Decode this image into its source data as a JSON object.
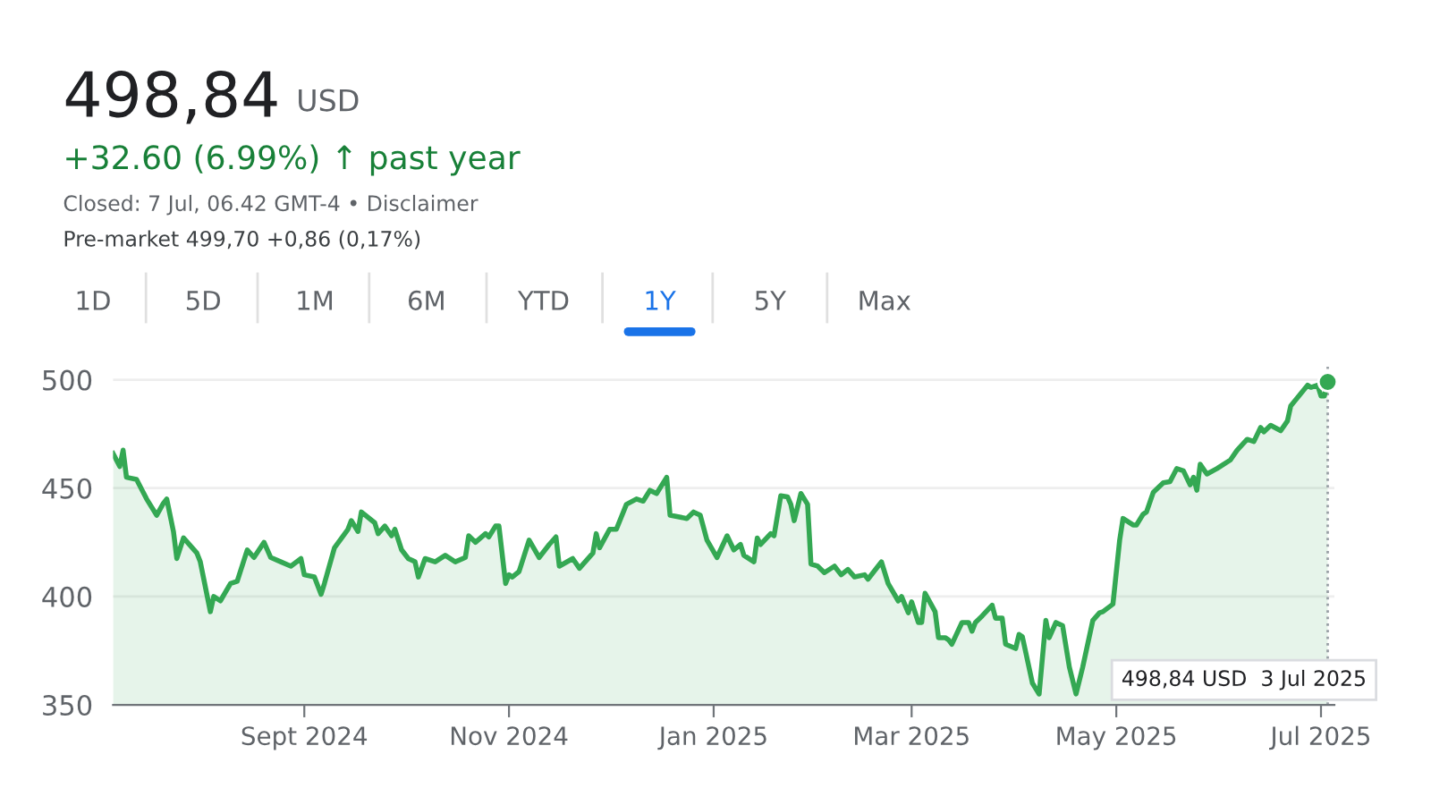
{
  "chart_data": {
    "type": "area",
    "title": "498,84",
    "annotations": [
      "USD",
      "+32.60 (6.99%) ↑ past year",
      "Closed: 7 Jul, 06.42 GMT-4 • Disclaimer",
      "Pre-market 499,70 +0,86 (0,17%)",
      "1D",
      "5D",
      "1M",
      "6M",
      "YTD",
      "1Y",
      "5Y",
      "Max",
      "498,84 USD  3 Jul 2025"
    ],
    "x": [
      "2024-07-06",
      "2024-07-08",
      "2024-07-09",
      "2024-07-10",
      "2024-07-13",
      "2024-07-16",
      "2024-07-19",
      "2024-07-21",
      "2024-07-22",
      "2024-07-24",
      "2024-07-25",
      "2024-07-27",
      "2024-07-31",
      "2024-08-01",
      "2024-08-04",
      "2024-08-05",
      "2024-08-07",
      "2024-08-10",
      "2024-08-12",
      "2024-08-15",
      "2024-08-17",
      "2024-08-20",
      "2024-08-22",
      "2024-08-25",
      "2024-08-28",
      "2024-08-31",
      "2024-09-01",
      "2024-09-04",
      "2024-09-06",
      "2024-09-07",
      "2024-09-10",
      "2024-09-14",
      "2024-09-15",
      "2024-09-17",
      "2024-09-18",
      "2024-09-22",
      "2024-09-23",
      "2024-09-25",
      "2024-09-27",
      "2024-09-28",
      "2024-09-30",
      "2024-10-02",
      "2024-10-04",
      "2024-10-05",
      "2024-10-07",
      "2024-10-10",
      "2024-10-13",
      "2024-10-16",
      "2024-10-19",
      "2024-10-20",
      "2024-10-22",
      "2024-10-25",
      "2024-10-26",
      "2024-10-28",
      "2024-10-29",
      "2024-10-31",
      "2024-11-01",
      "2024-11-02",
      "2024-11-04",
      "2024-11-07",
      "2024-11-10",
      "2024-11-13",
      "2024-11-15",
      "2024-11-16",
      "2024-11-20",
      "2024-11-22",
      "2024-11-26",
      "2024-11-27",
      "2024-11-28",
      "2024-12-01",
      "2024-12-03",
      "2024-12-06",
      "2024-12-09",
      "2024-12-11",
      "2024-12-13",
      "2024-12-15",
      "2024-12-18",
      "2024-12-19",
      "2024-12-24",
      "2024-12-26",
      "2024-12-28",
      "2024-12-30",
      "2025-01-02",
      "2025-01-05",
      "2025-01-07",
      "2025-01-09",
      "2025-01-10",
      "2025-01-13",
      "2025-01-14",
      "2025-01-15",
      "2025-01-18",
      "2025-01-19",
      "2025-01-21",
      "2025-01-23",
      "2025-01-24",
      "2025-01-25",
      "2025-01-27",
      "2025-01-29",
      "2025-01-30",
      "2025-02-01",
      "2025-02-03",
      "2025-02-06",
      "2025-02-08",
      "2025-02-10",
      "2025-02-12",
      "2025-02-15",
      "2025-02-16",
      "2025-02-19",
      "2025-02-20",
      "2025-02-22",
      "2025-02-25",
      "2025-02-26",
      "2025-02-28",
      "2025-03-01",
      "2025-03-03",
      "2025-03-04",
      "2025-03-05",
      "2025-03-08",
      "2025-03-09",
      "2025-03-11",
      "2025-03-12",
      "2025-03-13",
      "2025-03-16",
      "2025-03-18",
      "2025-03-19",
      "2025-03-20",
      "2025-03-22",
      "2025-03-25",
      "2025-03-26",
      "2025-03-28",
      "2025-03-29",
      "2025-04-01",
      "2025-04-02",
      "2025-04-03",
      "2025-04-06",
      "2025-04-08",
      "2025-04-10",
      "2025-04-11",
      "2025-04-13",
      "2025-04-15",
      "2025-04-17",
      "2025-04-19",
      "2025-04-21",
      "2025-04-24",
      "2025-04-26",
      "2025-04-27",
      "2025-04-30",
      "2025-05-02",
      "2025-05-03",
      "2025-05-06",
      "2025-05-07",
      "2025-05-09",
      "2025-05-10",
      "2025-05-12",
      "2025-05-15",
      "2025-05-17",
      "2025-05-19",
      "2025-05-21",
      "2025-05-23",
      "2025-05-24",
      "2025-05-25",
      "2025-05-26",
      "2025-05-28",
      "2025-05-31",
      "2025-06-04",
      "2025-06-06",
      "2025-06-09",
      "2025-06-11",
      "2025-06-13",
      "2025-06-14",
      "2025-06-16",
      "2025-06-19",
      "2025-06-21",
      "2025-06-22",
      "2025-06-27",
      "2025-06-28",
      "2025-06-30",
      "2025-07-01",
      "2025-07-02",
      "2025-07-03"
    ],
    "series": [
      {
        "color": "#34a853",
        "values": [
          466,
          460,
          467.5,
          455,
          454,
          445,
          437.5,
          443,
          445,
          430,
          417.5,
          427,
          420,
          416,
          393,
          400,
          398,
          406,
          407,
          421.5,
          418,
          425,
          418,
          416,
          414,
          417.5,
          410,
          409,
          401,
          406,
          422.5,
          431,
          435,
          430,
          439,
          434,
          429,
          432.5,
          428,
          431,
          421.5,
          417.5,
          416,
          409,
          417.5,
          416,
          419,
          416,
          418,
          428,
          425,
          429,
          427.5,
          432.5,
          432.5,
          406,
          410,
          409,
          411.5,
          426,
          418,
          424,
          427.5,
          414,
          417.5,
          413,
          420,
          429,
          422.5,
          431,
          431,
          442.5,
          445,
          444,
          449,
          447.5,
          455,
          437.5,
          436,
          439,
          437.5,
          426,
          418,
          428,
          421.5,
          424,
          419,
          416,
          427,
          424,
          429,
          428,
          446.5,
          446,
          442.5,
          435,
          447.5,
          442.5,
          415,
          414,
          411,
          414,
          410,
          412.5,
          409,
          410,
          408,
          414,
          416,
          406,
          398,
          400,
          392.5,
          397.5,
          388,
          388,
          401.5,
          393,
          381,
          381,
          380,
          378,
          388,
          388,
          384,
          388,
          391,
          396,
          390,
          390,
          378,
          376,
          382.5,
          381.5,
          360,
          355,
          389,
          381,
          388,
          386.5,
          367.5,
          355,
          367.5,
          389,
          392.5,
          393,
          396.5,
          426,
          436,
          433,
          433,
          438,
          439,
          448,
          452.5,
          453,
          459,
          458,
          451.5,
          455,
          449,
          461,
          456.5,
          459,
          463,
          467.5,
          472.5,
          471.5,
          478,
          476,
          479,
          476.5,
          481,
          488,
          497.5,
          496.5,
          497.5,
          492.5,
          492.5,
          499
        ]
      },
      {
        "type": "scatter",
        "color": "#34a853",
        "marker": "circle",
        "x": [
          "2025-07-03"
        ],
        "values": [
          499
        ]
      }
    ],
    "xlim": [
      "2024-07-06",
      "2025-07-05"
    ],
    "xticks": [
      {
        "value": "2024-09-01",
        "label": "Sept 2024"
      },
      {
        "value": "2024-11-01",
        "label": "Nov 2024"
      },
      {
        "value": "2025-01-01",
        "label": "Jan 2025"
      },
      {
        "value": "2025-03-01",
        "label": "Mar 2025"
      },
      {
        "value": "2025-05-01",
        "label": "May 2025"
      },
      {
        "value": "2025-07-01",
        "label": "Jul 2025"
      }
    ],
    "ylim": [
      350,
      506
    ],
    "yticks": [
      350,
      400,
      450,
      500
    ],
    "grid": "y",
    "ref_lines": [
      {
        "axis": "x",
        "value": "2025-07-03",
        "label": null,
        "color": "#9aa0a6",
        "line_style": "dotted"
      }
    ],
    "legend": false
  }
}
